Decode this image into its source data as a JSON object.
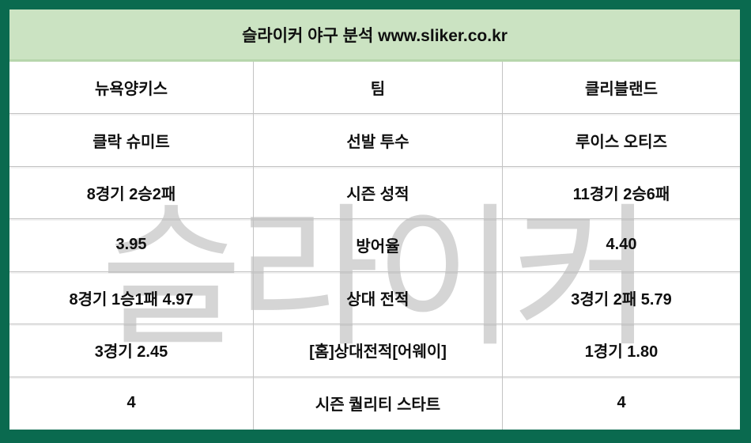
{
  "header": {
    "title": "슬라이커 야구 분석 www.sliker.co.kr"
  },
  "watermark": {
    "text": "슬라이커"
  },
  "colors": {
    "frame_green": "#0a6a4f",
    "header_bg_green": "#cbe3c2",
    "header_border_green": "#b7d6ac",
    "grid_line_gray": "#c3c3c3",
    "watermark_gray": "#d5d5d5",
    "text_black": "#0f0f0f"
  },
  "table": {
    "columns": [
      "home_team_value",
      "stat_label",
      "away_team_value"
    ],
    "rows": [
      {
        "home": "뉴욕양키스",
        "label": "팀",
        "away": "클리블랜드"
      },
      {
        "home": "클락 슈미트",
        "label": "선발 투수",
        "away": "루이스 오티즈"
      },
      {
        "home": "8경기 2승2패",
        "label": "시즌 성적",
        "away": "11경기 2승6패"
      },
      {
        "home": "3.95",
        "label": "방어율",
        "away": "4.40"
      },
      {
        "home": "8경기 1승1패 4.97",
        "label": "상대 전적",
        "away": "3경기 2패 5.79"
      },
      {
        "home": "3경기 2.45",
        "label": "[홈]상대전적[어웨이]",
        "away": "1경기 1.80"
      },
      {
        "home": "4",
        "label": "시즌 퀄리티 스타트",
        "away": "4"
      }
    ]
  }
}
